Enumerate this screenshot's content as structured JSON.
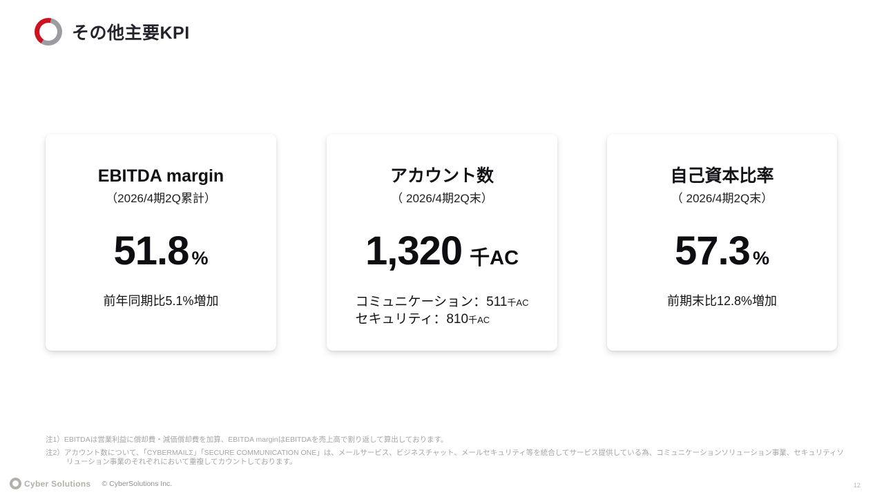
{
  "header": {
    "title": "その他主要KPI"
  },
  "cards": [
    {
      "title": "EBITDA margin",
      "subtitle": "（2026/4期2Q累計）",
      "value": "51.8",
      "unit": "%",
      "note": "前年同期比5.1%増加"
    },
    {
      "title": "アカウント数",
      "subtitle": "（ 2026/4期2Q末）",
      "value": "1,320",
      "unit": "千AC",
      "breakdown": [
        {
          "text": "コミュニケーション：511",
          "unit": "千AC"
        },
        {
          "text": "セキュリティ：810",
          "unit": "千AC"
        }
      ]
    },
    {
      "title": "自己資本比率",
      "subtitle": "（ 2026/4期2Q末）",
      "value": "57.3",
      "unit": "%",
      "note": "前期末比12.8%増加"
    }
  ],
  "footnotes": [
    "注1）EBITDAは営業利益に償却費・減価償却費を加算、EBITDA marginはEBITDAを売上高で割り返して算出しております。",
    "注2）アカウント数について、「CYBERMAILΣ」「SECURE COMMUNICATION ONE」は、メールサービス、ビジネスチャット、メールセキュリティ等を統合してサービス提供している為、コミュニケーションソリューション事業、セキュリティソリューション事業のそれぞれにおいて重複してカウントしております。"
  ],
  "footer": {
    "logo_text": "Cyber Solutions",
    "copyright": "© CyberSolutions Inc.",
    "page_number": "12"
  },
  "colors": {
    "accent_red": "#ce121f",
    "logo_gray": "#9c9ca0",
    "text_dark": "#17171d",
    "muted_gray": "#a5a5a5"
  }
}
